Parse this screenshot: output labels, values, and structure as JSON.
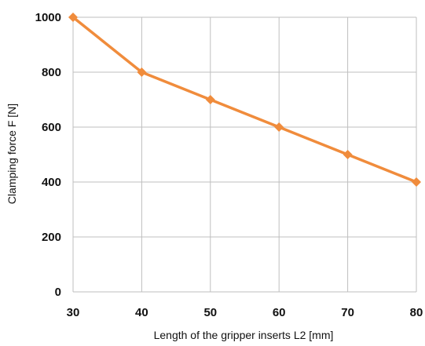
{
  "chart_data": {
    "type": "line",
    "xlabel": "Length of the gripper inserts L2 [mm]",
    "ylabel": "Clamping force F [N]",
    "xlim": [
      30,
      80
    ],
    "ylim": [
      0,
      1000
    ],
    "x_ticks": [
      "30",
      "40",
      "50",
      "60",
      "70",
      "80"
    ],
    "y_ticks": [
      "0",
      "200",
      "400",
      "600",
      "800",
      "1000"
    ],
    "grid": true,
    "series": [
      {
        "x": [
          30,
          40,
          50,
          60,
          70,
          80
        ],
        "values": [
          1000,
          800,
          700,
          600,
          500,
          400
        ],
        "color": "#f08c3c",
        "marker": "diamond"
      }
    ],
    "gridline_color": "#bfbfbf"
  }
}
